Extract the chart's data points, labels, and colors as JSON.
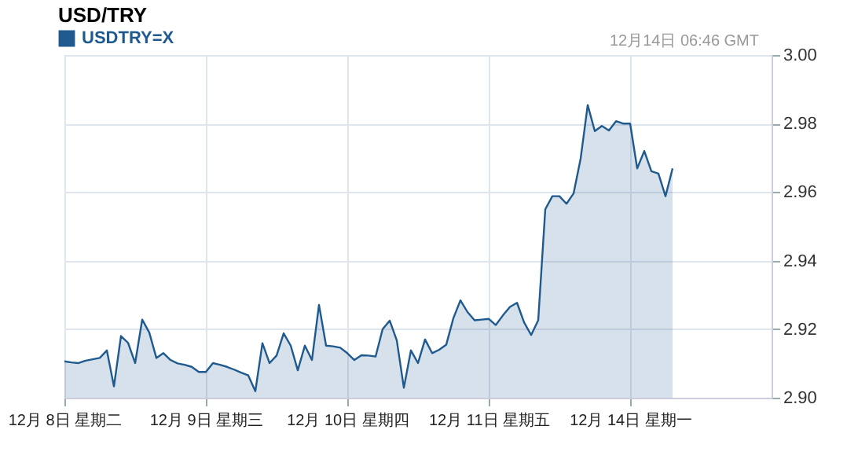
{
  "chart_data": {
    "type": "area",
    "title": "USD/TRY",
    "annotations": [
      "12月14日 06:46 GMT"
    ],
    "categories": [
      "12月 8日 星期二",
      null,
      null,
      null,
      null,
      null,
      null,
      null,
      null,
      null,
      null,
      null,
      null,
      null,
      null,
      null,
      null,
      null,
      null,
      null,
      "12月 9日 星期三",
      null,
      null,
      null,
      null,
      null,
      null,
      null,
      null,
      null,
      null,
      null,
      null,
      null,
      null,
      null,
      null,
      null,
      null,
      null,
      "12月 10日 星期四",
      null,
      null,
      null,
      null,
      null,
      null,
      null,
      null,
      null,
      null,
      null,
      null,
      null,
      null,
      null,
      null,
      null,
      null,
      null,
      "12月 11日 星期五",
      null,
      null,
      null,
      null,
      null,
      null,
      null,
      null,
      null,
      null,
      null,
      null,
      null,
      null,
      null,
      null,
      null,
      null,
      null,
      "12月 14日 星期一",
      null,
      null,
      null,
      null,
      null,
      null,
      null,
      null,
      null,
      null,
      null,
      null,
      null,
      null,
      null,
      null,
      null,
      null,
      null,
      null
    ],
    "ylim": [
      2.9,
      3.0
    ],
    "yticks": [
      {
        "value": 2.9,
        "label": "2.90"
      },
      2.92,
      2.94,
      2.96,
      2.98,
      {
        "value": 3.0,
        "label": "3.00"
      }
    ],
    "grid": true,
    "legend": "top left",
    "series": [
      {
        "name": "USDTRY=X",
        "color": "#1f5a8f",
        "values": [
          2.9106,
          2.9103,
          2.9101,
          2.9108,
          2.9112,
          2.9116,
          2.9138,
          2.9033,
          2.918,
          2.916,
          2.9101,
          2.9228,
          2.919,
          2.9116,
          2.913,
          2.911,
          2.91,
          2.9096,
          2.909,
          2.9075,
          2.9075,
          2.9101,
          2.9096,
          2.909,
          2.9082,
          2.9073,
          2.9065,
          2.9019,
          2.9159,
          2.9101,
          2.9123,
          2.9188,
          2.9152,
          2.908,
          2.9152,
          2.911,
          2.9271,
          2.9152,
          2.915,
          2.9146,
          2.913,
          2.911,
          2.9124,
          2.9123,
          2.912,
          2.92,
          2.9225,
          2.9167,
          2.9029,
          2.9138,
          2.9101,
          2.917,
          2.913,
          2.914,
          2.9155,
          2.9232,
          2.9284,
          2.925,
          2.9226,
          2.9228,
          2.923,
          2.9212,
          2.924,
          2.9265,
          2.9277,
          2.922,
          2.9183,
          2.9226,
          2.955,
          2.9588,
          2.9588,
          2.9566,
          2.9596,
          2.9698,
          2.9854,
          2.9778,
          2.9793,
          2.978,
          2.9807,
          2.98,
          2.98,
          2.9669,
          2.972,
          2.9661,
          2.9654,
          2.9588,
          2.9669,
          null,
          null,
          null,
          null,
          null,
          null,
          null,
          null,
          null,
          null,
          null,
          null,
          null,
          null
        ]
      }
    ]
  }
}
